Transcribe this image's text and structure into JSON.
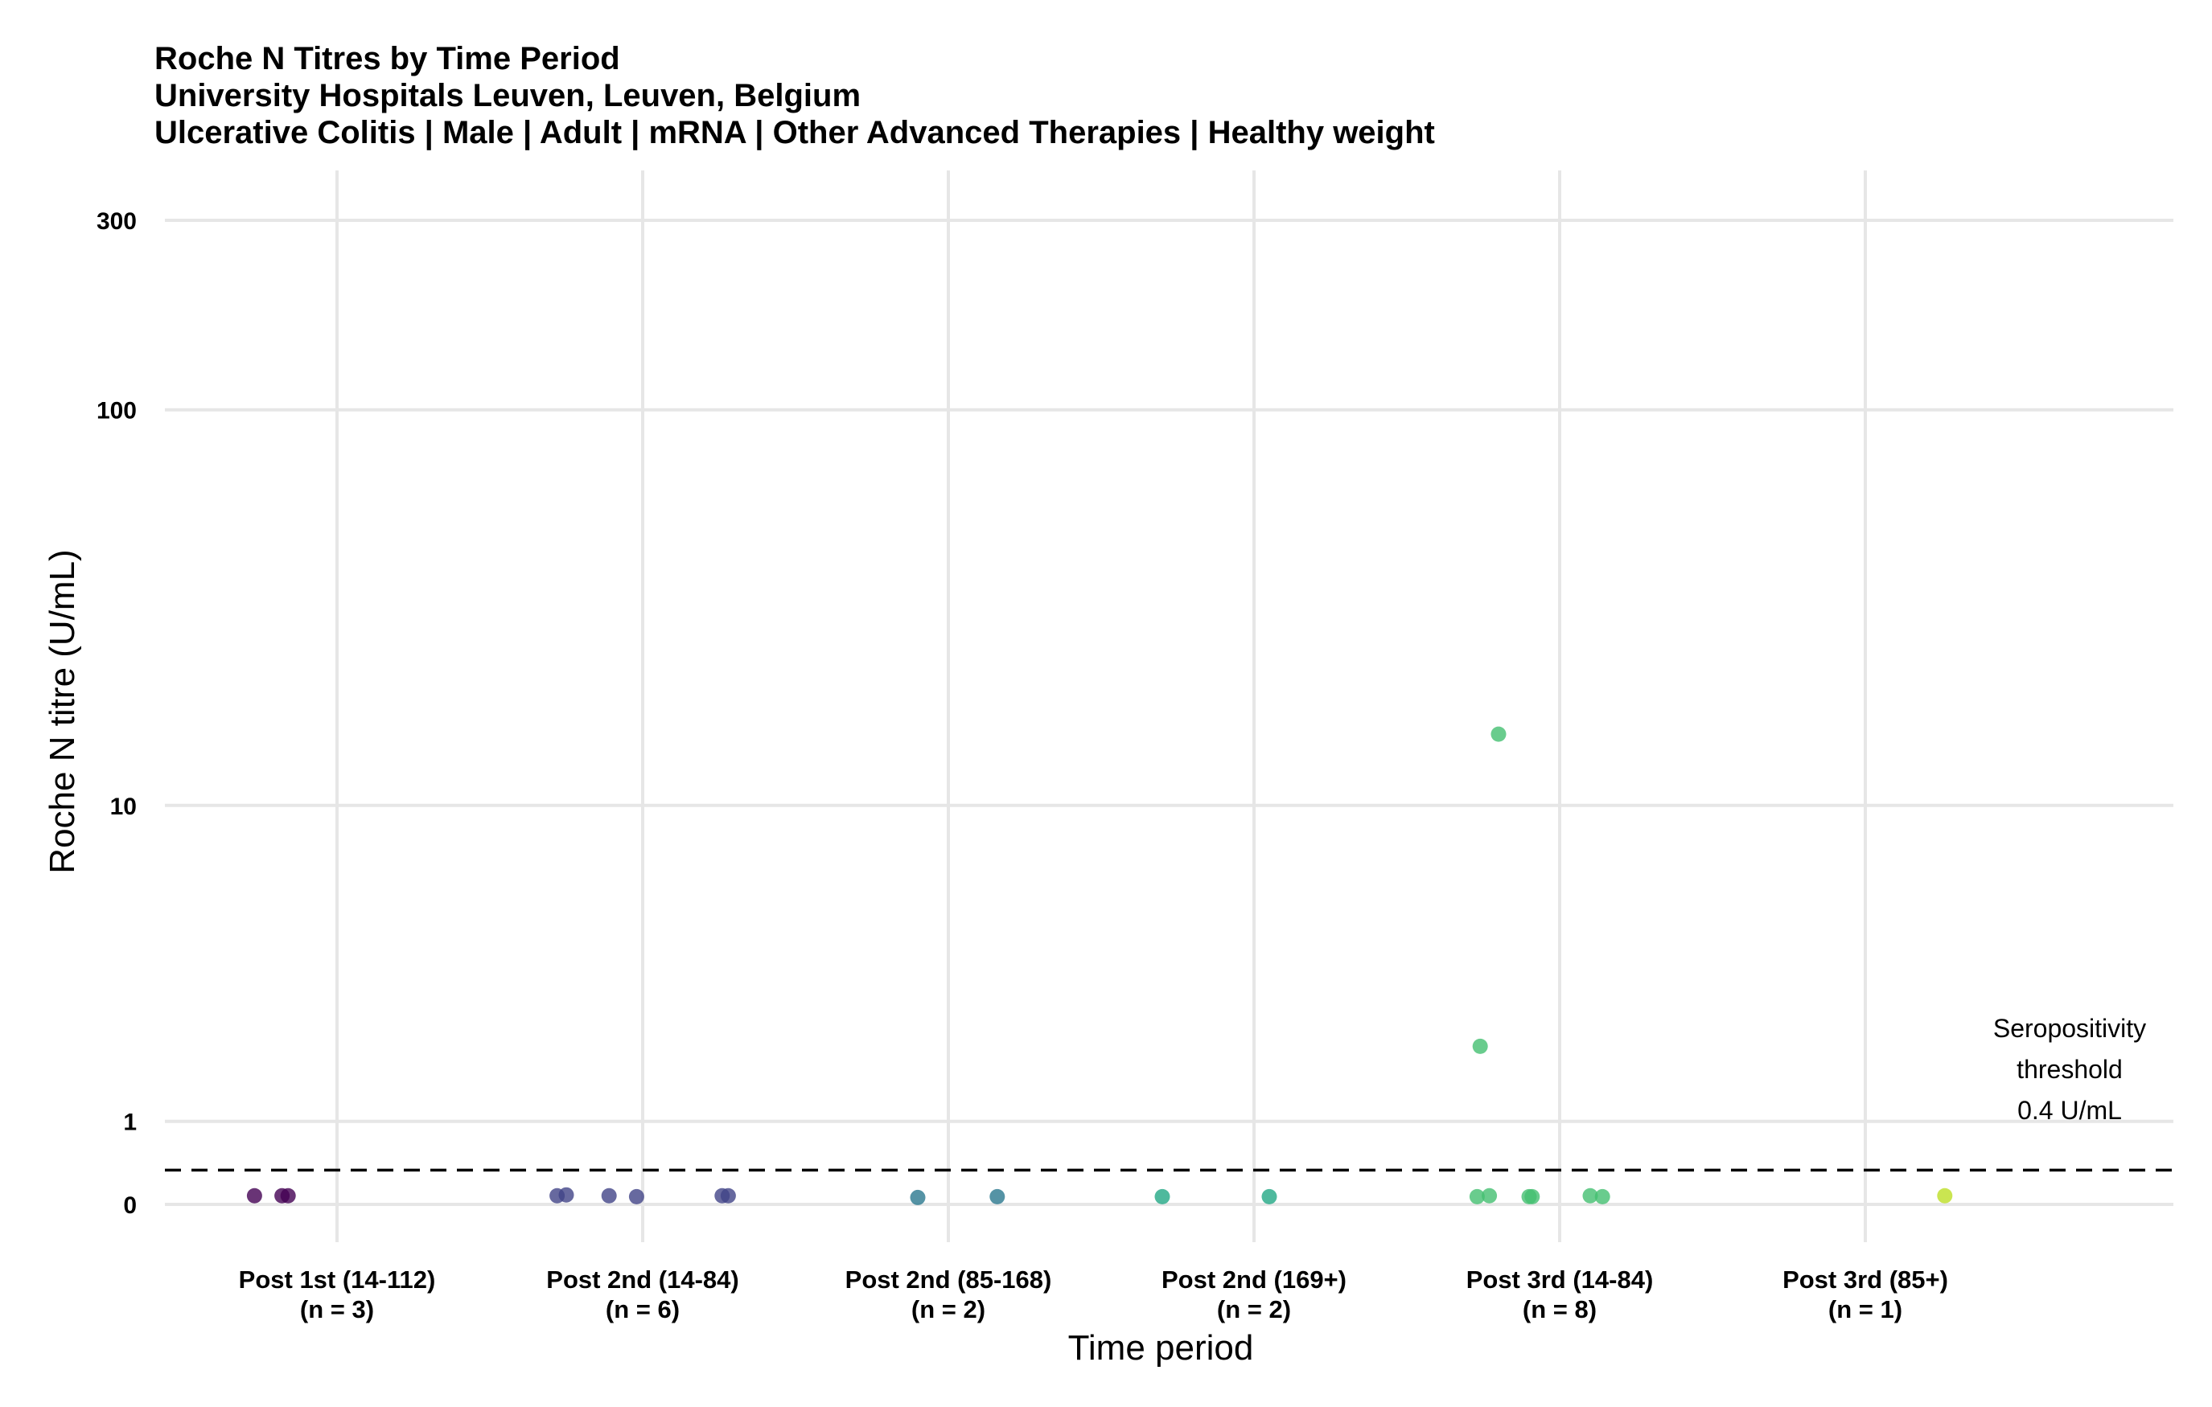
{
  "chart_data": {
    "type": "scatter",
    "title": "Roche N Titres by Time Period",
    "subtitle_lines": [
      "University Hospitals Leuven, Leuven, Belgium",
      "Ulcerative Colitis | Male | Adult | mRNA | Other Advanced Therapies | Healthy weight"
    ],
    "xlabel": "Time period",
    "ylabel": "Roche N titre (U/mL)",
    "y_scale": "pseudo-log",
    "ylim": [
      0,
      300
    ],
    "y_ticks": [
      "0",
      "1",
      "10",
      "100",
      "300"
    ],
    "grid": true,
    "legend": "none",
    "categories": [
      {
        "label": "Post 1st (14-112)",
        "n_label": "(n = 3)",
        "color": "#440154"
      },
      {
        "label": "Post 2nd (14-84)",
        "n_label": "(n = 6)",
        "color": "#414487"
      },
      {
        "label": "Post 2nd (85-168)",
        "n_label": "(n = 2)",
        "color": "#2a788e"
      },
      {
        "label": "Post 2nd (169+)",
        "n_label": "(n = 2)",
        "color": "#22a884"
      },
      {
        "label": "Post 3rd (14-84)",
        "n_label": "(n = 8)",
        "color": "#44bf70"
      },
      {
        "label": "Post 3rd (85+)",
        "n_label": "(n = 1)",
        "color": "#bddf26"
      }
    ],
    "points": [
      {
        "category": 0,
        "jitter": -0.27,
        "y": 0.1
      },
      {
        "category": 0,
        "jitter": -0.18,
        "y": 0.1
      },
      {
        "category": 0,
        "jitter": -0.16,
        "y": 0.1
      },
      {
        "category": 1,
        "jitter": -0.28,
        "y": 0.1
      },
      {
        "category": 1,
        "jitter": -0.25,
        "y": 0.11
      },
      {
        "category": 1,
        "jitter": -0.11,
        "y": 0.1
      },
      {
        "category": 1,
        "jitter": -0.02,
        "y": 0.09
      },
      {
        "category": 1,
        "jitter": 0.26,
        "y": 0.1
      },
      {
        "category": 1,
        "jitter": 0.28,
        "y": 0.1
      },
      {
        "category": 2,
        "jitter": -0.1,
        "y": 0.08
      },
      {
        "category": 2,
        "jitter": 0.16,
        "y": 0.09
      },
      {
        "category": 3,
        "jitter": -0.3,
        "y": 0.09
      },
      {
        "category": 3,
        "jitter": 0.05,
        "y": 0.09
      },
      {
        "category": 4,
        "jitter": -0.27,
        "y": 0.09
      },
      {
        "category": 4,
        "jitter": -0.23,
        "y": 0.1
      },
      {
        "category": 4,
        "jitter": -0.1,
        "y": 0.09
      },
      {
        "category": 4,
        "jitter": -0.09,
        "y": 0.09
      },
      {
        "category": 4,
        "jitter": 0.1,
        "y": 0.1
      },
      {
        "category": 4,
        "jitter": 0.14,
        "y": 0.09
      },
      {
        "category": 4,
        "jitter": -0.26,
        "y": 2.1
      },
      {
        "category": 4,
        "jitter": -0.2,
        "y": 15.2
      },
      {
        "category": 5,
        "jitter": 0.26,
        "y": 0.1
      }
    ],
    "threshold": {
      "value": 0.4,
      "label_lines": [
        "Seropositivity",
        "threshold",
        "0.4 U/mL"
      ],
      "line_style": "dashed"
    }
  }
}
